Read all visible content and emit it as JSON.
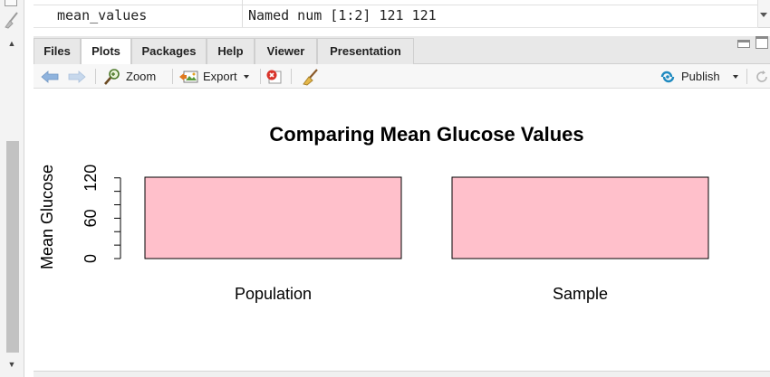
{
  "environment": {
    "cut_off_row_text": "...",
    "row": {
      "name": "mean_values",
      "value": "Named num [1:2] 121 121"
    }
  },
  "tabs": [
    {
      "label": "Files",
      "active": false
    },
    {
      "label": "Plots",
      "active": true
    },
    {
      "label": "Packages",
      "active": false
    },
    {
      "label": "Help",
      "active": false
    },
    {
      "label": "Viewer",
      "active": false
    },
    {
      "label": "Presentation",
      "active": false
    }
  ],
  "toolbar": {
    "zoom_label": "Zoom",
    "export_label": "Export",
    "publish_label": "Publish"
  },
  "colors": {
    "bar_fill": "#ffc0cb",
    "publish_accent": "#1f8ac0",
    "nav_arrow": "#8fb3dd",
    "remove_red": "#d9342b"
  },
  "icons": {
    "back": "arrow-left-icon",
    "forward": "arrow-right-icon",
    "zoom": "magnifier-icon",
    "export": "export-image-icon",
    "remove": "remove-plot-icon",
    "clear": "broom-icon",
    "publish": "publish-icon",
    "refresh": "refresh-icon"
  },
  "chart_data": {
    "type": "bar",
    "title": "Comparing Mean Glucose Values",
    "categories": [
      "Population",
      "Sample"
    ],
    "values": [
      121,
      121
    ],
    "xlabel": "",
    "ylabel": "Mean Glucose",
    "ylim": [
      0,
      121
    ],
    "yticks": [
      0,
      20,
      40,
      60,
      80,
      100,
      120
    ],
    "ytick_labels": [
      "0",
      "60",
      "120"
    ],
    "labeled_ticks": [
      0,
      60,
      120
    ],
    "grid": false,
    "legend": "none"
  }
}
